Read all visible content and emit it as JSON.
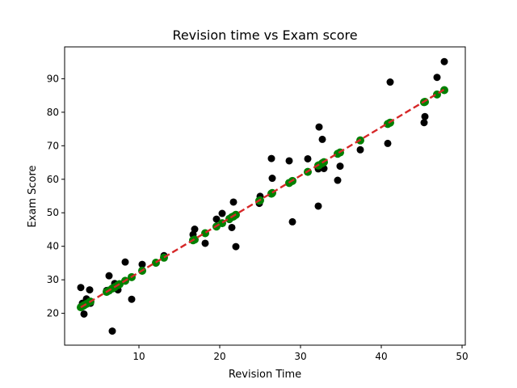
{
  "chart_data": {
    "type": "scatter",
    "title": "Revision time vs Exam score",
    "xlabel": "Revision Time",
    "ylabel": "Exam Score",
    "xlim": [
      0.8,
      50.4
    ],
    "ylim": [
      10.5,
      99.5
    ],
    "xticks": [
      10,
      20,
      30,
      40,
      50
    ],
    "yticks": [
      20,
      30,
      40,
      50,
      60,
      70,
      80,
      90
    ],
    "grid": false,
    "legend": "none",
    "series": [
      {
        "kind": "scatter",
        "color": "#000000",
        "points": [
          [
            2.8,
            27.7
          ],
          [
            3.0,
            23.0
          ],
          [
            3.2,
            19.8
          ],
          [
            3.5,
            24.3
          ],
          [
            3.9,
            27.0
          ],
          [
            4.0,
            23.0
          ],
          [
            6.0,
            26.8
          ],
          [
            6.3,
            31.2
          ],
          [
            6.7,
            14.7
          ],
          [
            7.0,
            28.9
          ],
          [
            7.4,
            27.0
          ],
          [
            7.6,
            28.6
          ],
          [
            8.3,
            35.3
          ],
          [
            9.1,
            24.2
          ],
          [
            10.4,
            34.6
          ],
          [
            12.1,
            35.0
          ],
          [
            13.1,
            37.2
          ],
          [
            16.7,
            43.5
          ],
          [
            16.9,
            45.1
          ],
          [
            18.2,
            40.9
          ],
          [
            19.6,
            48.1
          ],
          [
            20.3,
            49.8
          ],
          [
            21.2,
            48.0
          ],
          [
            21.5,
            45.6
          ],
          [
            21.7,
            53.2
          ],
          [
            22.0,
            39.9
          ],
          [
            24.9,
            52.8
          ],
          [
            25.0,
            54.9
          ],
          [
            26.4,
            66.2
          ],
          [
            26.5,
            60.3
          ],
          [
            28.6,
            65.5
          ],
          [
            29.0,
            47.3
          ],
          [
            30.9,
            66.1
          ],
          [
            32.2,
            63.1
          ],
          [
            32.2,
            52.0
          ],
          [
            32.3,
            75.6
          ],
          [
            32.7,
            71.9
          ],
          [
            32.9,
            63.2
          ],
          [
            34.6,
            59.7
          ],
          [
            34.9,
            63.9
          ],
          [
            37.4,
            68.8
          ],
          [
            40.8,
            70.7
          ],
          [
            41.1,
            89.0
          ],
          [
            45.3,
            76.9
          ],
          [
            45.4,
            78.7
          ],
          [
            46.9,
            90.4
          ],
          [
            47.8,
            95.1
          ]
        ]
      },
      {
        "kind": "fit-points",
        "color": "#008000",
        "points": [
          [
            2.8,
            21.8
          ],
          [
            3.0,
            22.1
          ],
          [
            3.2,
            22.4
          ],
          [
            3.5,
            22.8
          ],
          [
            3.9,
            23.4
          ],
          [
            4.0,
            23.5
          ],
          [
            6.0,
            26.4
          ],
          [
            6.3,
            26.8
          ],
          [
            6.7,
            27.4
          ],
          [
            7.0,
            27.8
          ],
          [
            7.4,
            28.4
          ],
          [
            7.6,
            28.7
          ],
          [
            8.3,
            29.7
          ],
          [
            9.1,
            30.8
          ],
          [
            10.4,
            32.7
          ],
          [
            12.1,
            35.1
          ],
          [
            13.1,
            36.6
          ],
          [
            16.7,
            41.8
          ],
          [
            16.9,
            42.0
          ],
          [
            18.2,
            43.9
          ],
          [
            19.6,
            45.9
          ],
          [
            20.3,
            46.9
          ],
          [
            21.2,
            48.2
          ],
          [
            21.5,
            48.7
          ],
          [
            21.7,
            48.9
          ],
          [
            22.0,
            49.4
          ],
          [
            24.9,
            53.6
          ],
          [
            25.0,
            53.7
          ],
          [
            26.4,
            55.7
          ],
          [
            26.5,
            55.9
          ],
          [
            28.6,
            58.9
          ],
          [
            29.0,
            59.5
          ],
          [
            30.9,
            62.2
          ],
          [
            32.2,
            64.1
          ],
          [
            32.3,
            64.2
          ],
          [
            32.7,
            64.8
          ],
          [
            32.9,
            65.1
          ],
          [
            34.6,
            67.6
          ],
          [
            34.9,
            68.0
          ],
          [
            37.4,
            71.6
          ],
          [
            40.8,
            76.5
          ],
          [
            41.1,
            76.9
          ],
          [
            45.3,
            83.0
          ],
          [
            45.4,
            83.1
          ],
          [
            46.9,
            85.3
          ],
          [
            47.8,
            86.6
          ]
        ]
      },
      {
        "kind": "fit-line",
        "color": "#d62728",
        "style": "dashed",
        "x": [
          2.8,
          47.8
        ],
        "y": [
          21.8,
          86.8
        ]
      }
    ]
  }
}
